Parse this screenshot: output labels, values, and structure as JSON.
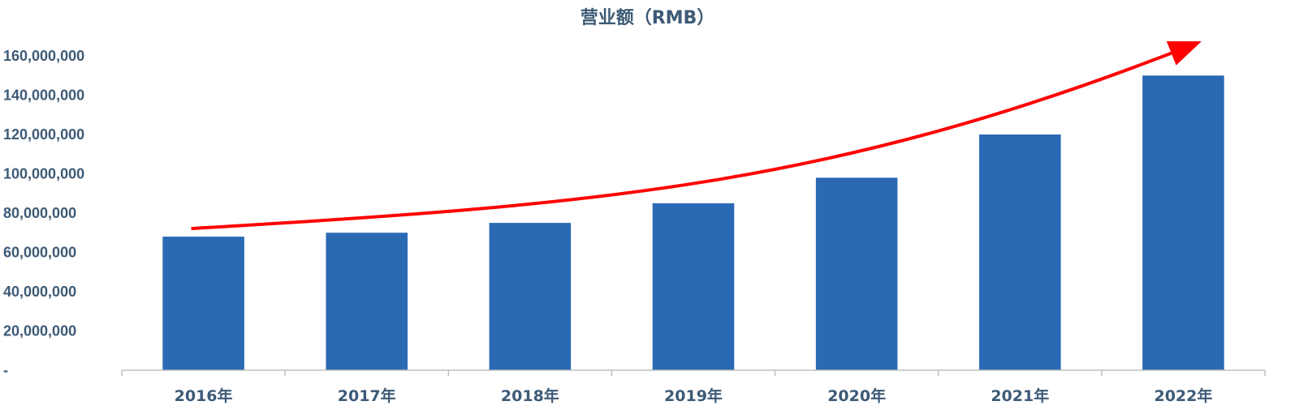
{
  "chart_data": {
    "type": "bar",
    "title": "营业额（RMB）",
    "categories": [
      "2016年",
      "2017年",
      "2018年",
      "2019年",
      "2020年",
      "2021年",
      "2022年"
    ],
    "values": [
      68000000,
      70000000,
      75000000,
      85000000,
      98000000,
      120000000,
      150000000
    ],
    "ylim": [
      0,
      160000000
    ],
    "yticks": [
      0,
      20000000,
      40000000,
      60000000,
      80000000,
      100000000,
      120000000,
      140000000,
      160000000
    ],
    "ytick_labels": [
      "-",
      "20,000,000",
      "40,000,000",
      "60,000,000",
      "80,000,000",
      "100,000,000",
      "120,000,000",
      "140,000,000",
      "160,000,000"
    ],
    "xlabel": "",
    "ylabel": "",
    "grid": false,
    "legend": "none",
    "bar_color": "#2a6ab4",
    "annotation": {
      "type": "trend-arrow",
      "color": "#ff0000",
      "direction": "up-right"
    }
  }
}
